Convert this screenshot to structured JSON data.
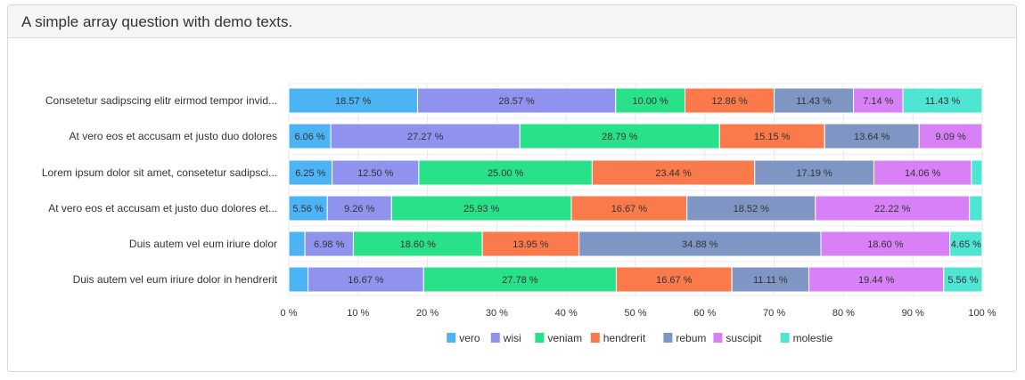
{
  "panel": {
    "title": "A simple array question with demo texts."
  },
  "chart_data": {
    "type": "bar",
    "orientation": "horizontal",
    "stacked": true,
    "title": "",
    "xlabel": "",
    "ylabel": "",
    "xlim": [
      0,
      100
    ],
    "tick_labels": [
      "0 %",
      "10 %",
      "20 %",
      "30 %",
      "40 %",
      "50 %",
      "60 %",
      "70 %",
      "80 %",
      "90 %",
      "100 %"
    ],
    "legend_position": "bottom",
    "grid": true,
    "categories": [
      "Consetetur sadipscing elitr eirmod tempor invid...",
      "At vero eos et accusam et justo duo dolores",
      "Lorem ipsum dolor sit amet, consetetur sadipsci...",
      "At vero eos et accusam et justo duo dolores et...",
      "Duis autem vel eum iriure dolor",
      "Duis autem vel eum iriure dolor in hendrerit"
    ],
    "series": [
      {
        "name": "vero",
        "color": "#4cb4f5",
        "values": [
          18.57,
          6.06,
          6.25,
          5.56,
          2.33,
          2.78
        ]
      },
      {
        "name": "wisi",
        "color": "#8f93ee",
        "values": [
          28.57,
          27.27,
          12.5,
          9.26,
          6.98,
          16.67
        ]
      },
      {
        "name": "veniam",
        "color": "#29e189",
        "values": [
          10.0,
          28.79,
          25.0,
          25.93,
          18.6,
          27.78
        ]
      },
      {
        "name": "hendrerit",
        "color": "#fa7a4b",
        "values": [
          12.86,
          15.15,
          23.44,
          16.67,
          13.95,
          16.67
        ]
      },
      {
        "name": "rebum",
        "color": "#7f96c4",
        "values": [
          11.43,
          13.64,
          17.19,
          18.52,
          34.88,
          11.11
        ]
      },
      {
        "name": "suscipit",
        "color": "#d881f7",
        "values": [
          7.14,
          9.09,
          14.06,
          22.22,
          18.6,
          19.44
        ]
      },
      {
        "name": "molestie",
        "color": "#4ee5d2",
        "values": [
          11.43,
          0,
          1.56,
          1.85,
          4.65,
          5.56
        ]
      }
    ],
    "data_labels": [
      [
        "18.57 %",
        "28.57 %",
        "10.00 %",
        "12.86 %",
        "11.43 %",
        "7.14 %",
        "11.43 %"
      ],
      [
        "6.06 %",
        "27.27 %",
        "28.79 %",
        "15.15 %",
        "13.64 %",
        "9.09 %",
        ""
      ],
      [
        "6.25 %",
        "12.50 %",
        "25.00 %",
        "23.44 %",
        "17.19 %",
        "14.06 %",
        ""
      ],
      [
        "5.56 %",
        "9.26 %",
        "25.93 %",
        "16.67 %",
        "18.52 %",
        "22.22 %",
        ""
      ],
      [
        "",
        "6.98 %",
        "18.60 %",
        "13.95 %",
        "34.88 %",
        "18.60 %",
        "4.65 %"
      ],
      [
        "",
        "16.67 %",
        "27.78 %",
        "16.67 %",
        "11.11 %",
        "19.44 %",
        "5.56 %"
      ]
    ]
  }
}
